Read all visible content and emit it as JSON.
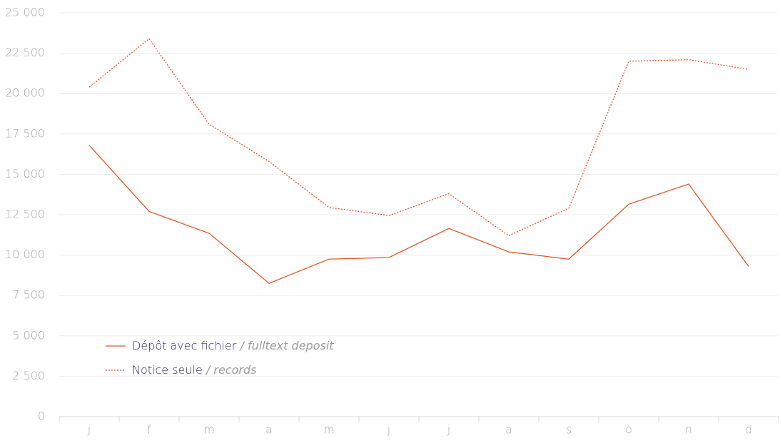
{
  "chart_data": {
    "type": "line",
    "categories": [
      "j",
      "f",
      "m",
      "a",
      "m",
      "j",
      "j",
      "a",
      "s",
      "o",
      "n",
      "d"
    ],
    "series": [
      {
        "name": "Dépôt avec fichier",
        "subname": "/ fulltext deposit",
        "color": "#e2582c",
        "dash": "solid",
        "values": [
          16800,
          12700,
          11350,
          8250,
          9750,
          9850,
          11650,
          10200,
          9750,
          13150,
          14400,
          9300
        ]
      },
      {
        "name": "Notice seule",
        "subname": "/ records",
        "color": "#e2582c",
        "dash": "dotted",
        "values": [
          20400,
          23400,
          18100,
          15800,
          12950,
          12450,
          13800,
          11200,
          12900,
          22000,
          22100,
          21500
        ]
      }
    ],
    "ylim": [
      0,
      25000
    ],
    "yticks": [
      0,
      {
        "value": 2500,
        "label": "2 500"
      },
      {
        "value": 5000,
        "label": "5 000"
      },
      {
        "value": 7500,
        "label": "7 500"
      },
      {
        "value": 10000,
        "label": "10 000"
      },
      {
        "value": 12500,
        "label": "12 500"
      },
      {
        "value": 15000,
        "label": "15 000"
      },
      {
        "value": 17500,
        "label": "17 500"
      },
      {
        "value": 20000,
        "label": "20 000"
      },
      {
        "value": 22500,
        "label": "22 500"
      },
      {
        "value": 25000,
        "label": "25 000"
      }
    ],
    "grid": true,
    "legend": "lower left"
  }
}
